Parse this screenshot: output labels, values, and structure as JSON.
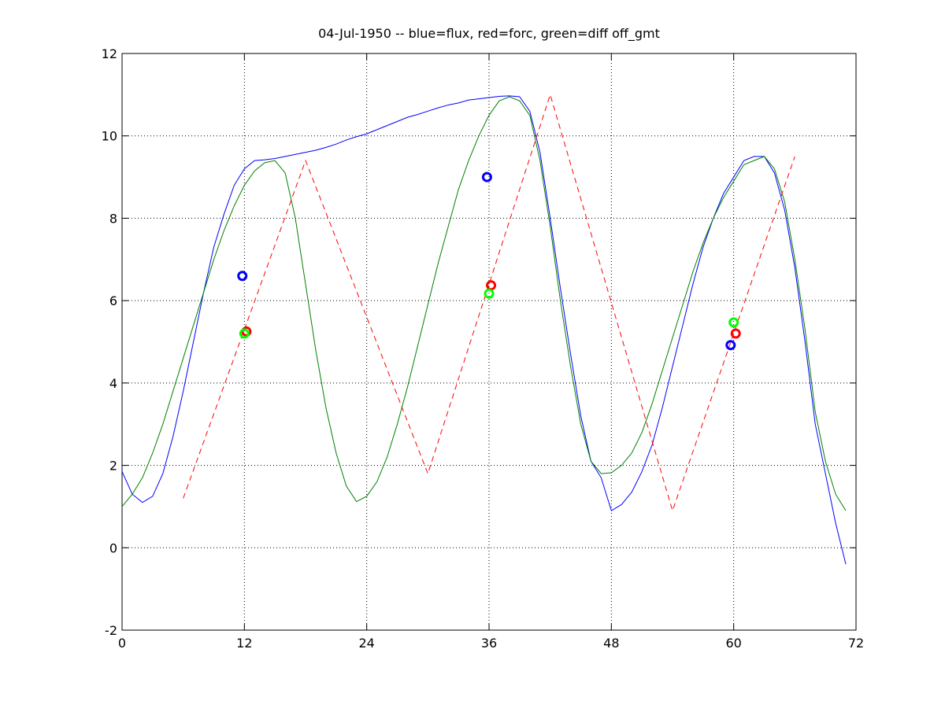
{
  "chart_data": {
    "type": "line",
    "title": "04-Jul-1950 -- blue=flux, red=forc, green=diff off_gmt",
    "xlim": [
      0,
      72
    ],
    "xticks": [
      0,
      12,
      24,
      36,
      48,
      60,
      72
    ],
    "ylim": [
      -2,
      12
    ],
    "yticks": [
      -2,
      0,
      2,
      4,
      6,
      8,
      10,
      12
    ],
    "grid": true,
    "series": [
      {
        "color": "#0000ff",
        "style": "solid",
        "x": [
          0,
          1,
          2,
          3,
          4,
          5,
          6,
          7,
          8,
          9,
          10,
          11,
          12,
          13,
          14,
          15,
          16,
          17,
          18,
          19,
          20,
          21,
          22,
          23,
          24,
          25,
          26,
          27,
          28,
          29,
          30,
          31,
          32,
          33,
          34,
          35,
          36,
          37,
          38,
          39,
          40,
          41,
          42,
          43,
          44,
          45,
          46,
          47,
          48,
          49,
          50,
          51,
          52,
          53,
          54,
          55,
          56,
          57,
          58,
          59,
          60,
          61,
          62,
          63,
          64,
          65,
          66,
          67,
          68,
          69,
          70,
          71
        ],
        "values": [
          1.85,
          1.3,
          1.1,
          1.25,
          1.8,
          2.7,
          3.8,
          5.0,
          6.2,
          7.3,
          8.1,
          8.8,
          9.2,
          9.4,
          9.42,
          9.45,
          9.5,
          9.55,
          9.6,
          9.65,
          9.72,
          9.8,
          9.9,
          9.98,
          10.05,
          10.15,
          10.25,
          10.35,
          10.45,
          10.52,
          10.6,
          10.68,
          10.75,
          10.8,
          10.87,
          10.9,
          10.93,
          10.96,
          10.97,
          10.95,
          10.6,
          9.6,
          8.0,
          6.3,
          4.7,
          3.2,
          2.1,
          1.7,
          0.9,
          1.05,
          1.35,
          1.85,
          2.5,
          3.4,
          4.4,
          5.4,
          6.4,
          7.3,
          8.0,
          8.6,
          9.0,
          9.4,
          9.5,
          9.5,
          9.1,
          8.2,
          6.8,
          5.0,
          3.0,
          1.8,
          0.6,
          -0.4
        ]
      },
      {
        "color": "#008000",
        "style": "solid",
        "x": [
          0,
          1,
          2,
          3,
          4,
          5,
          6,
          7,
          8,
          9,
          10,
          11,
          12,
          13,
          14,
          15,
          16,
          17,
          18,
          19,
          20,
          21,
          22,
          23,
          24,
          25,
          26,
          27,
          28,
          29,
          30,
          31,
          32,
          33,
          34,
          35,
          36,
          37,
          38,
          39,
          40,
          41,
          42,
          43,
          44,
          45,
          46,
          47,
          48,
          49,
          50,
          51,
          52,
          53,
          54,
          55,
          56,
          57,
          58,
          59,
          60,
          61,
          62,
          63,
          64,
          65,
          66,
          67,
          68,
          69,
          70,
          71
        ],
        "values": [
          1.0,
          1.3,
          1.7,
          2.3,
          3.0,
          3.8,
          4.6,
          5.4,
          6.2,
          7.0,
          7.7,
          8.3,
          8.8,
          9.15,
          9.35,
          9.4,
          9.1,
          8.0,
          6.4,
          4.8,
          3.4,
          2.3,
          1.5,
          1.12,
          1.25,
          1.6,
          2.2,
          3.0,
          3.9,
          4.9,
          5.9,
          6.9,
          7.8,
          8.7,
          9.4,
          10.0,
          10.5,
          10.85,
          10.95,
          10.85,
          10.5,
          9.4,
          7.8,
          6.0,
          4.4,
          3.0,
          2.1,
          1.8,
          1.82,
          2.0,
          2.3,
          2.8,
          3.5,
          4.3,
          5.1,
          5.9,
          6.7,
          7.4,
          8.0,
          8.5,
          8.9,
          9.3,
          9.4,
          9.5,
          9.2,
          8.4,
          7.0,
          5.3,
          3.3,
          2.1,
          1.3,
          0.9
        ]
      },
      {
        "color": "#ff0000",
        "style": "dashed",
        "x": [
          6,
          18,
          30,
          42,
          54,
          66
        ],
        "values": [
          1.2,
          9.4,
          1.8,
          11.0,
          0.9,
          9.5
        ]
      },
      {
        "color": "#0000ff",
        "style": "marker",
        "x": [
          11.8,
          35.8,
          59.7
        ],
        "values": [
          6.6,
          9.0,
          4.92
        ]
      },
      {
        "color": "#ff0000",
        "style": "marker",
        "x": [
          12.2,
          36.2,
          60.2
        ],
        "values": [
          5.25,
          6.37,
          5.2
        ]
      },
      {
        "color": "#00ff00",
        "style": "marker",
        "x": [
          12.0,
          36.0,
          60.0
        ],
        "values": [
          5.2,
          6.17,
          5.47
        ]
      }
    ]
  }
}
